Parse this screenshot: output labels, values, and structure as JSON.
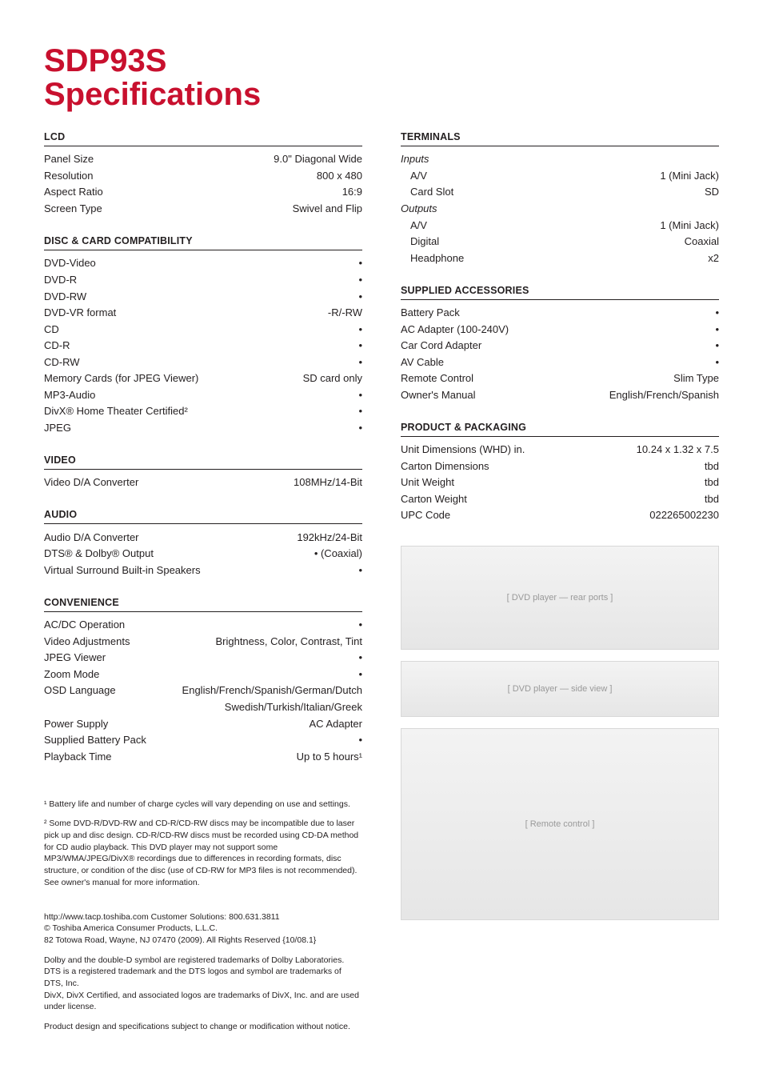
{
  "title_line1": "SDP93S",
  "title_line2": "Specifications",
  "colors": {
    "accent": "#c8102e",
    "text": "#231f20",
    "rule": "#231f20",
    "background": "#ffffff"
  },
  "typography": {
    "title_size_pt": 30,
    "body_size_pt": 10,
    "footnote_size_pt": 8
  },
  "left": {
    "lcd": {
      "heading": "LCD",
      "rows": [
        {
          "label": "Panel Size",
          "value": "9.0\" Diagonal Wide"
        },
        {
          "label": "Resolution",
          "value": "800 x 480"
        },
        {
          "label": "Aspect Ratio",
          "value": "16:9"
        },
        {
          "label": "Screen Type",
          "value": "Swivel and Flip"
        }
      ]
    },
    "disc": {
      "heading": "DISC & CARD COMPATIBILITY",
      "rows": [
        {
          "label": "DVD-Video",
          "value": "•"
        },
        {
          "label": "DVD-R",
          "value": "•"
        },
        {
          "label": "DVD-RW",
          "value": "•"
        },
        {
          "label": "DVD-VR format",
          "value": "-R/-RW"
        },
        {
          "label": "CD",
          "value": "•"
        },
        {
          "label": "CD-R",
          "value": "•"
        },
        {
          "label": "CD-RW",
          "value": "•"
        },
        {
          "label": "Memory Cards (for JPEG Viewer)",
          "value": "SD card only"
        },
        {
          "label": "MP3-Audio",
          "value": "•"
        },
        {
          "label": "DivX® Home Theater Certified²",
          "value": "•"
        },
        {
          "label": "JPEG",
          "value": "•"
        }
      ]
    },
    "video": {
      "heading": "VIDEO",
      "rows": [
        {
          "label": "Video D/A Converter",
          "value": "108MHz/14-Bit"
        }
      ]
    },
    "audio": {
      "heading": "AUDIO",
      "rows": [
        {
          "label": "Audio D/A Converter",
          "value": "192kHz/24-Bit"
        },
        {
          "label": "DTS® & Dolby® Output",
          "value": "• (Coaxial)"
        },
        {
          "label": "Virtual Surround Built-in Speakers",
          "value": "•"
        }
      ]
    },
    "convenience": {
      "heading": "CONVENIENCE",
      "rows": [
        {
          "label": "AC/DC Operation",
          "value": "•"
        },
        {
          "label": "Video Adjustments",
          "value": "Brightness, Color, Contrast, Tint"
        },
        {
          "label": "JPEG Viewer",
          "value": "•"
        },
        {
          "label": "Zoom Mode",
          "value": "•"
        },
        {
          "label": "OSD Language",
          "value": "English/French/Spanish/German/Dutch"
        }
      ],
      "osd_extra": "Swedish/Turkish/Italian/Greek",
      "rows2": [
        {
          "label": "Power Supply",
          "value": "AC Adapter"
        },
        {
          "label": "Supplied Battery Pack",
          "value": "•"
        },
        {
          "label": "Playback Time",
          "value": "Up to 5 hours¹"
        }
      ]
    },
    "footnotes": {
      "fn1": "¹ Battery life and number of charge cycles will vary depending on use and settings.",
      "fn2": "² Some DVD-R/DVD-RW and CD-R/CD-RW discs may be incompatible due to laser pick up and disc design. CD-R/CD-RW discs must be recorded using CD-DA method for CD audio playback. This DVD player  may not support some MP3/WMA/JPEG/DivX® recordings due to differences in recording formats, disc structure, or condition of the disc (use of CD-RW for MP3 files is not recommended). See owner's manual for more information."
    },
    "footer": {
      "p1": "http://www.tacp.toshiba.com  Customer Solutions: 800.631.3811",
      "p2": " © Toshiba America Consumer Products, L.L.C.",
      "p3": "82 Totowa Road, Wayne, NJ 07470  (2009). All Rights Reserved {10/08.1}",
      "p4": "Dolby and the double-D symbol are registered trademarks of Dolby Laboratories.",
      "p5": "DTS is a registered trademark and the DTS logos and symbol are trademarks of DTS, Inc.",
      "p6": "DivX, DivX Certified, and associated logos are trademarks of DivX, Inc. and are used under license.",
      "p7": "Product design and specifications subject to change or modification without notice."
    }
  },
  "right": {
    "terminals": {
      "heading": "TERMINALS",
      "inputs_head": "Inputs",
      "inputs": [
        {
          "label": "A/V",
          "value": "1 (Mini Jack)"
        },
        {
          "label": "Card Slot",
          "value": "SD"
        }
      ],
      "outputs_head": "Outputs",
      "outputs": [
        {
          "label": "A/V",
          "value": "1 (Mini Jack)"
        },
        {
          "label": "Digital",
          "value": "Coaxial"
        },
        {
          "label": "Headphone",
          "value": "x2"
        }
      ]
    },
    "accessories": {
      "heading": "SUPPLIED ACCESSORIES",
      "rows": [
        {
          "label": "Battery Pack",
          "value": "•"
        },
        {
          "label": "AC Adapter (100-240V)",
          "value": "•"
        },
        {
          "label": "Car Cord Adapter",
          "value": "•"
        },
        {
          "label": "AV Cable",
          "value": "•"
        },
        {
          "label": "Remote Control",
          "value": "Slim Type"
        },
        {
          "label": "Owner's Manual",
          "value": "English/French/Spanish"
        }
      ]
    },
    "packaging": {
      "heading": "PRODUCT & PACKAGING",
      "rows": [
        {
          "label": "Unit Dimensions (WHD) in.",
          "value": "10.24 x 1.32 x 7.5"
        },
        {
          "label": "Carton Dimensions",
          "value": "tbd"
        },
        {
          "label": "Unit Weight",
          "value": "tbd"
        },
        {
          "label": "Carton Weight",
          "value": "tbd"
        },
        {
          "label": "UPC Code",
          "value": "022265002230"
        }
      ]
    },
    "images": {
      "player_alt": "[ DVD player — rear ports ]",
      "side_alt": "[ DVD player — side view ]",
      "remote_alt": "[ Remote control ]"
    }
  }
}
